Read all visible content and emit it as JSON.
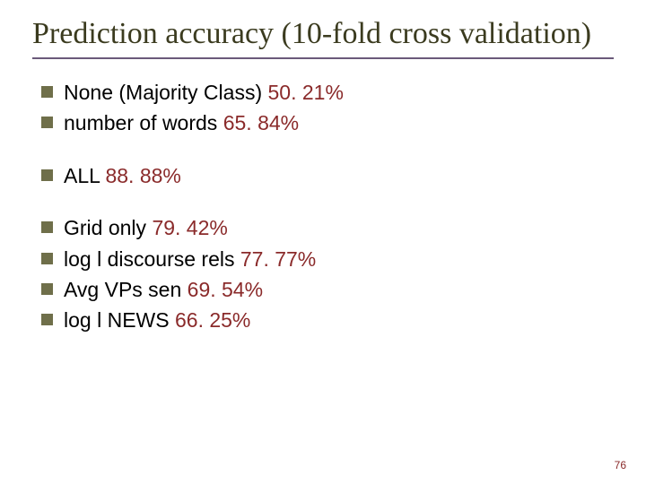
{
  "title": "Prediction accuracy (10-fold cross validation)",
  "groups": [
    {
      "items": [
        {
          "label": "None (Majority Class) ",
          "value": "50. 21%"
        },
        {
          "label": "number of words ",
          "value": "65. 84%"
        }
      ]
    },
    {
      "items": [
        {
          "label": "ALL ",
          "value": "88. 88%"
        }
      ]
    },
    {
      "items": [
        {
          "label": "Grid only ",
          "value": "79. 42%"
        },
        {
          "label": "log l discourse rels ",
          "value": "77. 77%"
        },
        {
          "label": "Avg VPs sen ",
          "value": "69. 54%"
        },
        {
          "label": "log l NEWS ",
          "value": "66. 25%"
        }
      ]
    }
  ],
  "page_number": "76",
  "colors": {
    "title_text": "#3b3b1f",
    "underline": "#6a5a7a",
    "bullet": "#6f6f4a",
    "body_text": "#000000",
    "value_text": "#8a2a2a",
    "background": "#ffffff"
  },
  "typography": {
    "title_family": "Times New Roman",
    "title_size_pt": 26,
    "body_family": "Arial",
    "body_size_pt": 17
  }
}
